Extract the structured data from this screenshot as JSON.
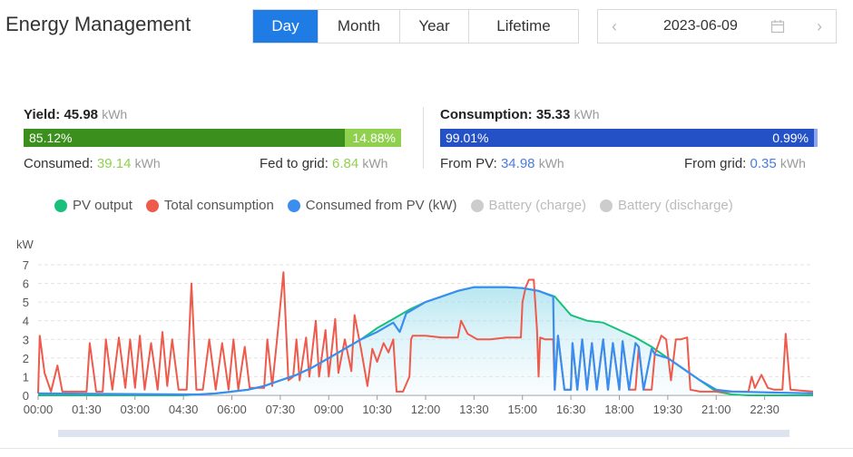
{
  "header": {
    "title": "Energy Management",
    "tabs": [
      {
        "label": "Day",
        "active": true
      },
      {
        "label": "Month",
        "active": false
      },
      {
        "label": "Year",
        "active": false
      },
      {
        "label": "Lifetime",
        "active": false
      }
    ],
    "date": "2023-06-09",
    "prev_icon": "chevron-left-icon",
    "next_icon": "chevron-right-icon",
    "calendar_icon": "calendar-icon"
  },
  "yield": {
    "label": "Yield:",
    "value": "45.98",
    "unit": "kWh",
    "consumed_pct_label": "85.12%",
    "fed_pct_label": "14.88%",
    "consumed_fraction": 0.8512,
    "consumed_label": "Consumed:",
    "consumed_value": "39.14",
    "consumed_unit": "kWh",
    "fed_label": "Fed to grid:",
    "fed_value": "6.84",
    "fed_unit": "kWh",
    "colors": {
      "consumed": "#3b8f1c",
      "fed": "#8fd14f"
    }
  },
  "consumption": {
    "label": "Consumption:",
    "value": "35.33",
    "unit": "kWh",
    "pv_pct_label": "99.01%",
    "grid_pct_label": "0.99%",
    "pv_fraction": 0.9901,
    "pv_label": "From PV:",
    "pv_value": "34.98",
    "pv_unit": "kWh",
    "grid_label": "From grid:",
    "grid_value": "0.35",
    "grid_unit": "kWh",
    "colors": {
      "pv": "#2451c6",
      "grid": "#8aa6f0"
    }
  },
  "legend": [
    {
      "label": "PV output",
      "color": "#18c07a",
      "enabled": true
    },
    {
      "label": "Total consumption",
      "color": "#ee5a4b",
      "enabled": true
    },
    {
      "label": "Consumed from PV (kW)",
      "color": "#3a8ef0",
      "enabled": true
    },
    {
      "label": "Battery (charge)",
      "color": "#cccccc",
      "enabled": false
    },
    {
      "label": "Battery (discharge)",
      "color": "#cccccc",
      "enabled": false
    }
  ],
  "chart_data": {
    "type": "line",
    "ylabel": "kW",
    "ylim": [
      0,
      7
    ],
    "yticks": [
      "0",
      "1",
      "2",
      "3",
      "4",
      "5",
      "6",
      "7"
    ],
    "xlim": [
      0,
      24
    ],
    "xticks": [
      "00:00",
      "01:30",
      "03:00",
      "04:30",
      "06:00",
      "07:30",
      "09:00",
      "10:30",
      "12:00",
      "13:30",
      "15:00",
      "16:30",
      "18:00",
      "19:30",
      "21:00",
      "22:30"
    ],
    "grid": true,
    "series": [
      {
        "name": "PV output",
        "color": "#18c07a",
        "points": [
          [
            0,
            0
          ],
          [
            4.5,
            0
          ],
          [
            5,
            0.05
          ],
          [
            5.5,
            0.1
          ],
          [
            6,
            0.2
          ],
          [
            6.5,
            0.3
          ],
          [
            7,
            0.5
          ],
          [
            7.5,
            0.8
          ],
          [
            8,
            1.1
          ],
          [
            8.5,
            1.5
          ],
          [
            9,
            2.0
          ],
          [
            9.5,
            2.5
          ],
          [
            10,
            3.0
          ],
          [
            10.5,
            3.6
          ],
          [
            11,
            4.1
          ],
          [
            11.5,
            4.6
          ],
          [
            12,
            5.0
          ],
          [
            12.5,
            5.3
          ],
          [
            13,
            5.6
          ],
          [
            13.5,
            5.8
          ],
          [
            14,
            5.8
          ],
          [
            14.5,
            5.8
          ],
          [
            15,
            5.75
          ],
          [
            15.5,
            5.6
          ],
          [
            16,
            5.3
          ],
          [
            16.5,
            4.3
          ],
          [
            17,
            4.0
          ],
          [
            17.5,
            3.9
          ],
          [
            18,
            3.5
          ],
          [
            18.5,
            3.1
          ],
          [
            19,
            2.6
          ],
          [
            19.5,
            2.0
          ],
          [
            20,
            1.4
          ],
          [
            20.5,
            0.8
          ],
          [
            21,
            0.2
          ],
          [
            21.5,
            0.05
          ],
          [
            22,
            0
          ],
          [
            24,
            0
          ]
        ]
      },
      {
        "name": "Total consumption",
        "color": "#ee5a4b",
        "points": [
          [
            0,
            0.1
          ],
          [
            0.05,
            3.2
          ],
          [
            0.2,
            1.2
          ],
          [
            0.4,
            0.2
          ],
          [
            0.6,
            1.6
          ],
          [
            0.75,
            0.2
          ],
          [
            1.5,
            0.2
          ],
          [
            1.6,
            2.8
          ],
          [
            1.8,
            0.2
          ],
          [
            2,
            0.2
          ],
          [
            2.1,
            3.0
          ],
          [
            2.3,
            0.3
          ],
          [
            2.5,
            3.1
          ],
          [
            2.7,
            0.4
          ],
          [
            2.85,
            3.0
          ],
          [
            3.0,
            0.4
          ],
          [
            3.15,
            3.2
          ],
          [
            3.3,
            0.3
          ],
          [
            3.5,
            2.8
          ],
          [
            3.7,
            0.3
          ],
          [
            3.85,
            3.4
          ],
          [
            4.0,
            0.5
          ],
          [
            4.15,
            3.0
          ],
          [
            4.35,
            0.3
          ],
          [
            4.6,
            0.3
          ],
          [
            4.75,
            6.0
          ],
          [
            4.9,
            0.3
          ],
          [
            5.1,
            0.3
          ],
          [
            5.3,
            3.0
          ],
          [
            5.5,
            0.3
          ],
          [
            5.7,
            2.8
          ],
          [
            5.9,
            0.3
          ],
          [
            6.05,
            3.0
          ],
          [
            6.2,
            0.3
          ],
          [
            6.4,
            2.6
          ],
          [
            6.55,
            0.4
          ],
          [
            7.0,
            0.4
          ],
          [
            7.1,
            3.0
          ],
          [
            7.25,
            0.5
          ],
          [
            7.4,
            3.0
          ],
          [
            7.6,
            6.6
          ],
          [
            7.75,
            0.8
          ],
          [
            7.9,
            1.0
          ],
          [
            8.0,
            3.0
          ],
          [
            8.1,
            0.8
          ],
          [
            8.3,
            3.1
          ],
          [
            8.4,
            1.0
          ],
          [
            8.6,
            4.0
          ],
          [
            8.7,
            1.0
          ],
          [
            8.9,
            3.5
          ],
          [
            9.0,
            1.0
          ],
          [
            9.2,
            4.1
          ],
          [
            9.3,
            1.2
          ],
          [
            9.5,
            3.0
          ],
          [
            9.7,
            1.3
          ],
          [
            9.8,
            4.3
          ],
          [
            10.0,
            2.5
          ],
          [
            10.2,
            0.5
          ],
          [
            10.35,
            2.5
          ],
          [
            10.5,
            1.8
          ],
          [
            10.7,
            2.8
          ],
          [
            10.85,
            2.3
          ],
          [
            11.0,
            3.0
          ],
          [
            11.1,
            0.2
          ],
          [
            11.3,
            0.2
          ],
          [
            11.5,
            1.0
          ],
          [
            11.55,
            3.0
          ],
          [
            11.6,
            3.2
          ],
          [
            12,
            3.2
          ],
          [
            12.5,
            3.1
          ],
          [
            13.0,
            3.1
          ],
          [
            13.1,
            4.0
          ],
          [
            13.3,
            3.3
          ],
          [
            13.6,
            3.0
          ],
          [
            14,
            3.0
          ],
          [
            14.5,
            3.1
          ],
          [
            14.95,
            3.1
          ],
          [
            15.0,
            5.0
          ],
          [
            15.1,
            5.8
          ],
          [
            15.2,
            6.2
          ],
          [
            15.35,
            6.2
          ],
          [
            15.45,
            3.5
          ],
          [
            15.5,
            1.0
          ],
          [
            15.55,
            3.1
          ],
          [
            15.7,
            3.0
          ],
          [
            15.95,
            3.0
          ],
          [
            16.0,
            0.3
          ],
          [
            16.1,
            3.2
          ],
          [
            16.3,
            0.3
          ],
          [
            16.5,
            0.3
          ],
          [
            16.55,
            2.8
          ],
          [
            16.7,
            0.3
          ],
          [
            16.85,
            3.0
          ],
          [
            17.0,
            0.3
          ],
          [
            17.15,
            2.8
          ],
          [
            17.3,
            0.3
          ],
          [
            17.5,
            3.0
          ],
          [
            17.65,
            0.3
          ],
          [
            17.8,
            2.8
          ],
          [
            18.0,
            0.3
          ],
          [
            18.1,
            2.9
          ],
          [
            18.3,
            0.3
          ],
          [
            18.5,
            0.3
          ],
          [
            18.6,
            2.6
          ],
          [
            18.75,
            0.3
          ],
          [
            19.0,
            0.3
          ],
          [
            19.1,
            2.2
          ],
          [
            19.3,
            3.2
          ],
          [
            19.45,
            3.0
          ],
          [
            19.6,
            0.8
          ],
          [
            19.75,
            3.0
          ],
          [
            19.9,
            3.0
          ],
          [
            20.1,
            3.1
          ],
          [
            20.2,
            0.3
          ],
          [
            20.5,
            0.2
          ],
          [
            21.5,
            0.2
          ],
          [
            22,
            0.2
          ],
          [
            22.1,
            1.0
          ],
          [
            22.2,
            0.4
          ],
          [
            22.4,
            1.1
          ],
          [
            22.6,
            0.4
          ],
          [
            22.8,
            0.3
          ],
          [
            23.05,
            0.3
          ],
          [
            23.15,
            3.3
          ],
          [
            23.3,
            0.3
          ],
          [
            24,
            0.2
          ]
        ]
      },
      {
        "name": "Consumed from PV (kW)",
        "color": "#3a8ef0",
        "points": [
          [
            0,
            0.1
          ],
          [
            4.5,
            0.05
          ],
          [
            5,
            0.05
          ],
          [
            5.5,
            0.1
          ],
          [
            6,
            0.2
          ],
          [
            6.5,
            0.3
          ],
          [
            7,
            0.5
          ],
          [
            7.5,
            0.8
          ],
          [
            8,
            1.1
          ],
          [
            8.5,
            1.5
          ],
          [
            9,
            2.0
          ],
          [
            9.5,
            2.5
          ],
          [
            10,
            3.0
          ],
          [
            10.5,
            3.4
          ],
          [
            11,
            3.9
          ],
          [
            11.2,
            3.4
          ],
          [
            11.4,
            4.4
          ],
          [
            11.6,
            4.6
          ],
          [
            12,
            5.0
          ],
          [
            12.5,
            5.3
          ],
          [
            13,
            5.6
          ],
          [
            13.5,
            5.8
          ],
          [
            14,
            5.8
          ],
          [
            14.5,
            5.8
          ],
          [
            15,
            5.75
          ],
          [
            15.5,
            5.6
          ],
          [
            15.95,
            5.3
          ],
          [
            16.0,
            0.3
          ],
          [
            16.1,
            3.2
          ],
          [
            16.3,
            0.3
          ],
          [
            16.5,
            0.3
          ],
          [
            16.55,
            2.8
          ],
          [
            16.7,
            0.3
          ],
          [
            16.85,
            3.0
          ],
          [
            17.0,
            0.3
          ],
          [
            17.15,
            2.8
          ],
          [
            17.3,
            0.3
          ],
          [
            17.5,
            3.0
          ],
          [
            17.65,
            0.3
          ],
          [
            17.8,
            2.8
          ],
          [
            18.0,
            0.3
          ],
          [
            18.1,
            2.9
          ],
          [
            18.3,
            0.3
          ],
          [
            18.5,
            2.8
          ],
          [
            18.6,
            2.6
          ],
          [
            18.75,
            0.3
          ],
          [
            19.0,
            2.5
          ],
          [
            19.1,
            2.2
          ],
          [
            19.5,
            2.0
          ],
          [
            20,
            1.4
          ],
          [
            20.5,
            0.8
          ],
          [
            21,
            0.3
          ],
          [
            21.5,
            0.2
          ],
          [
            24,
            0.1
          ]
        ]
      }
    ]
  }
}
